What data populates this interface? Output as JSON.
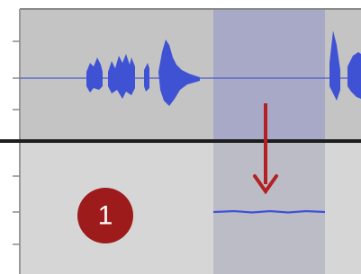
{
  "badge": {
    "label": "1"
  }
}
